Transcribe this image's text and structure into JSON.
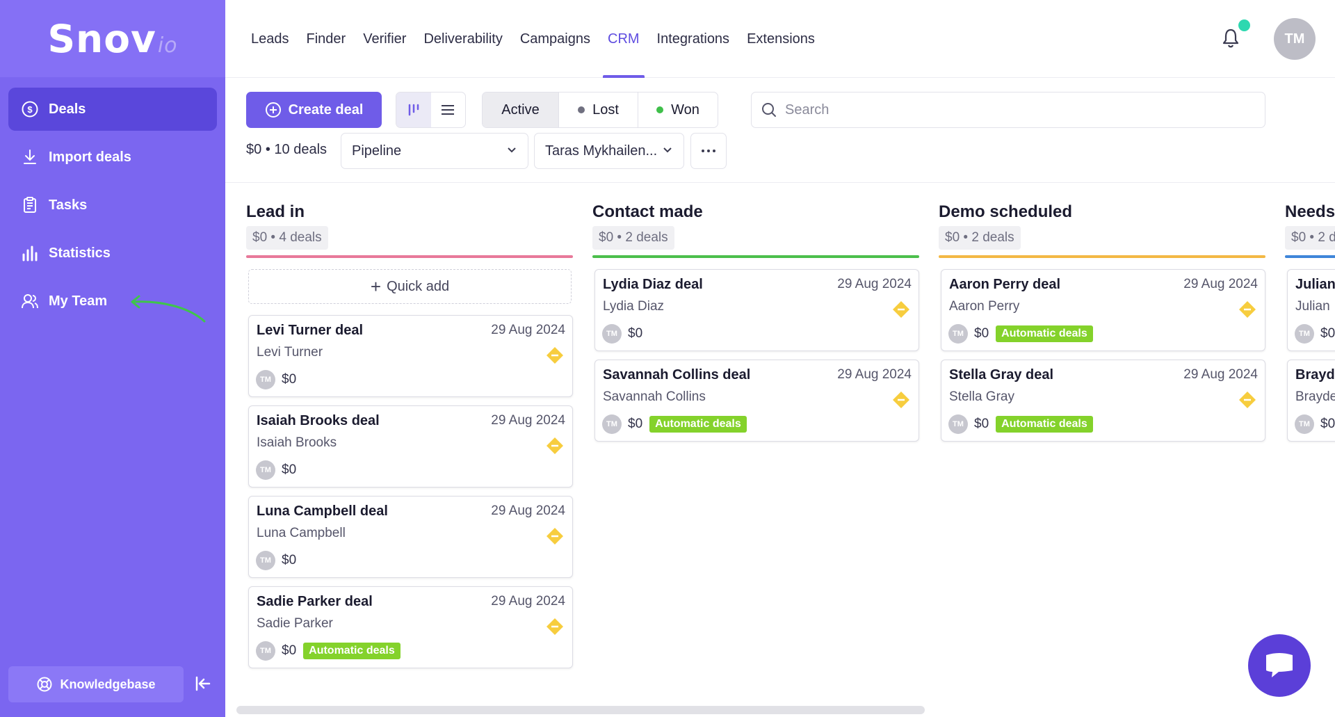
{
  "app": {
    "logo": "Snov",
    "logo_suffix": "io"
  },
  "sidebar": {
    "items": [
      {
        "label": "Deals",
        "icon": "dollar-circle-icon",
        "active": true
      },
      {
        "label": "Import deals",
        "icon": "download-icon",
        "active": false
      },
      {
        "label": "Tasks",
        "icon": "clipboard-icon",
        "active": false
      },
      {
        "label": "Statistics",
        "icon": "bar-chart-icon",
        "active": false
      },
      {
        "label": "My Team",
        "icon": "team-icon",
        "active": false
      }
    ],
    "knowledgebase_label": "Knowledgebase"
  },
  "topnav": {
    "items": [
      "Leads",
      "Finder",
      "Verifier",
      "Deliverability",
      "Campaigns",
      "CRM",
      "Integrations",
      "Extensions"
    ],
    "active": "CRM",
    "user_initials": "TM"
  },
  "toolbar": {
    "create_label": "Create deal",
    "status_active": "Active",
    "status_lost": "Lost",
    "status_won": "Won",
    "search_placeholder": "Search",
    "summary_amount": "$0",
    "summary_sep": "•",
    "summary_count": "10 deals",
    "pipeline_value": "Pipeline",
    "owner_value": "Taras Mykhailen..."
  },
  "board": {
    "quick_add_label": "Quick add",
    "columns": [
      {
        "title": "Lead in",
        "summary": "$0 • 4 deals",
        "color": "#e8799a",
        "cards": [
          {
            "title": "Levi Turner deal",
            "date": "29 Aug 2024",
            "contact": "Levi Turner",
            "initials": "TM",
            "amount": "$0",
            "tag": ""
          },
          {
            "title": "Isaiah Brooks deal",
            "date": "29 Aug 2024",
            "contact": "Isaiah Brooks",
            "initials": "TM",
            "amount": "$0",
            "tag": ""
          },
          {
            "title": "Luna Campbell deal",
            "date": "29 Aug 2024",
            "contact": "Luna Campbell",
            "initials": "TM",
            "amount": "$0",
            "tag": ""
          },
          {
            "title": "Sadie Parker deal",
            "date": "29 Aug 2024",
            "contact": "Sadie Parker",
            "initials": "TM",
            "amount": "$0",
            "tag": "Automatic deals"
          }
        ]
      },
      {
        "title": "Contact made",
        "summary": "$0 • 2 deals",
        "color": "#4cbf4c",
        "cards": [
          {
            "title": "Lydia Diaz deal",
            "date": "29 Aug 2024",
            "contact": "Lydia Diaz",
            "initials": "TM",
            "amount": "$0",
            "tag": ""
          },
          {
            "title": "Savannah Collins deal",
            "date": "29 Aug 2024",
            "contact": "Savannah Collins",
            "initials": "TM",
            "amount": "$0",
            "tag": "Automatic deals"
          }
        ]
      },
      {
        "title": "Demo scheduled",
        "summary": "$0 • 2 deals",
        "color": "#f3b844",
        "cards": [
          {
            "title": "Aaron Perry deal",
            "date": "29 Aug 2024",
            "contact": "Aaron Perry",
            "initials": "TM",
            "amount": "$0",
            "tag": "Automatic deals"
          },
          {
            "title": "Stella Gray deal",
            "date": "29 Aug 2024",
            "contact": "Stella Gray",
            "initials": "TM",
            "amount": "$0",
            "tag": "Automatic deals"
          }
        ]
      },
      {
        "title": "Needs",
        "summary": "$0 • 2 d",
        "color": "#3f86d9",
        "cards": [
          {
            "title": "Julian",
            "date": "",
            "contact": "Julian",
            "initials": "TM",
            "amount": "$0",
            "tag": ""
          },
          {
            "title": "Brayde",
            "date": "",
            "contact": "Brayde",
            "initials": "TM",
            "amount": "$0",
            "tag": ""
          }
        ]
      }
    ]
  },
  "colors": {
    "sidebar": "#7b66f0",
    "accent": "#6f5ce8",
    "tag": "#84d22b",
    "priority": "#f7cd3e",
    "lost_dot": "#707080",
    "won_dot": "#3fbf4a"
  }
}
